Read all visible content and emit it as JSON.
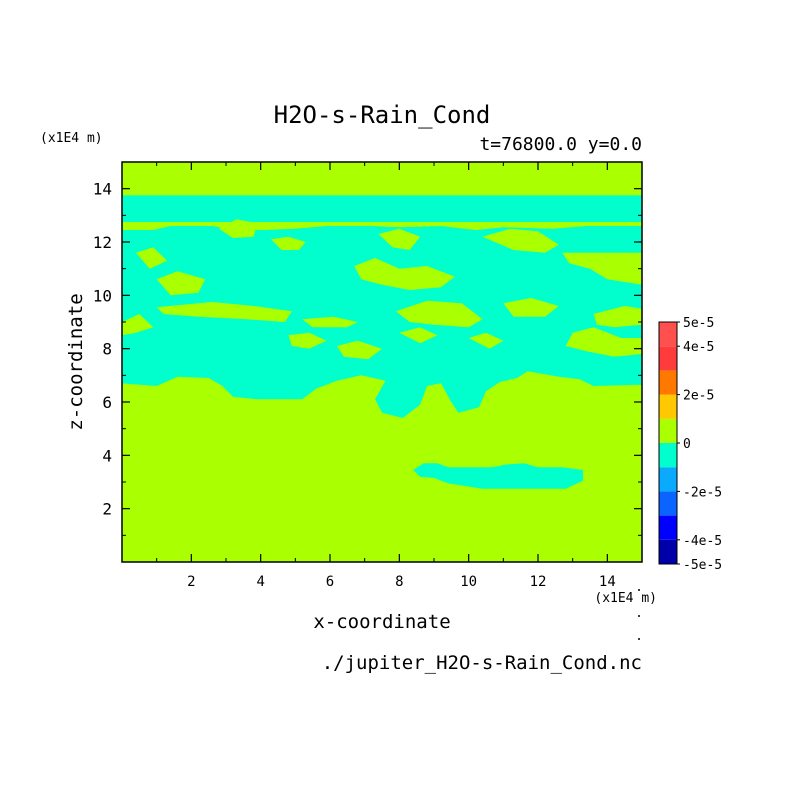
{
  "chart_data": {
    "type": "heatmap",
    "title": "H2O-s-Rain_Cond",
    "subtitle": "t=76800.0 y=0.0",
    "xlabel": "x-coordinate",
    "ylabel": "z-coordinate",
    "x_unit": "(x1E4 m)",
    "y_unit": "(x1E4 m)",
    "source_file": "./jupiter_H2O-s-Rain_Cond.nc",
    "xlim": [
      0,
      15
    ],
    "ylim": [
      0,
      15
    ],
    "x_ticks": [
      2,
      4,
      6,
      8,
      10,
      12,
      14
    ],
    "y_ticks": [
      2,
      4,
      6,
      8,
      10,
      12,
      14
    ],
    "grid": false,
    "legend_placement": "right",
    "colorbar": {
      "levels": [
        -5e-05,
        -4e-05,
        -3e-05,
        -2e-05,
        -1e-05,
        0,
        1e-05,
        2e-05,
        3e-05,
        4e-05,
        5e-05
      ],
      "colors": [
        "#0000a8",
        "#0000ff",
        "#0a64ff",
        "#0aaaff",
        "#00ffcc",
        "#aaff00",
        "#ffc800",
        "#ff7800",
        "#ff3c3c",
        "#ff5050"
      ],
      "tick_labels": [
        "5e-5",
        "4e-5",
        "2e-5",
        "0",
        "-2e-5",
        "-4e-5",
        "-5e-5"
      ]
    },
    "background_value_color": "#aaff00",
    "negative_region_color": "#00ffcc",
    "regions_negative": [
      {
        "shape": "band",
        "z_top": 13.75,
        "z_bottom": 12.75
      },
      {
        "shape": "mass",
        "z_top": 12.6,
        "z_bottom": 6.5,
        "note": "irregular cloud mass"
      },
      {
        "shape": "lower_blob",
        "x_from": 8.4,
        "x_to": 13.3,
        "z_top": 3.7,
        "z_bottom": 2.7
      }
    ]
  }
}
